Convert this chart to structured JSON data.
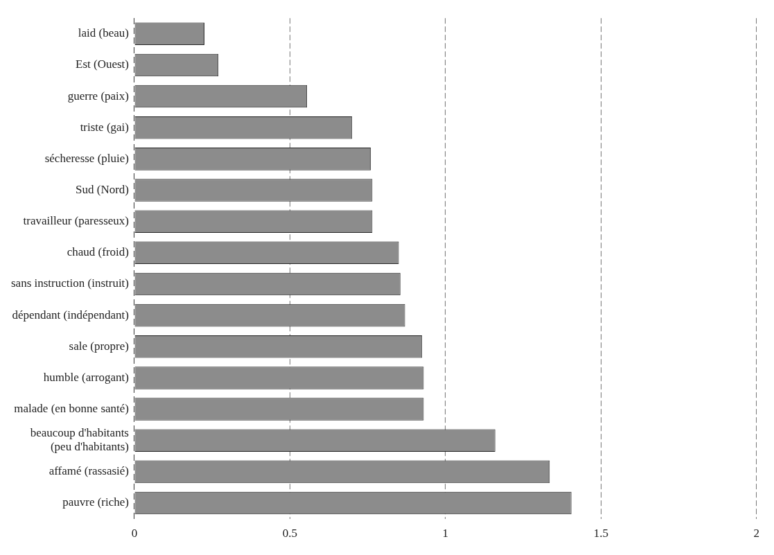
{
  "chart_data": {
    "type": "bar",
    "orientation": "horizontal",
    "categories": [
      "laid (beau)",
      "Est (Ouest)",
      "guerre (paix)",
      "triste (gai)",
      "sécheresse (pluie)",
      "Sud (Nord)",
      "travailleur (paresseux)",
      "chaud (froid)",
      "sans instruction (instruit)",
      "dépendant (indépendant)",
      "sale (propre)",
      "humble (arrogant)",
      "malade (en bonne santé)",
      "beaucoup d'habitants (peu d'habitants)",
      "affamé (rassasié)",
      "pauvre (riche)"
    ],
    "values": [
      0.225,
      0.27,
      0.555,
      0.7,
      0.76,
      0.765,
      0.765,
      0.85,
      0.855,
      0.87,
      0.925,
      0.93,
      0.93,
      1.16,
      1.335,
      1.405
    ],
    "color": "#8c8c8c",
    "xlim": [
      0,
      2
    ],
    "xticks": [
      0,
      0.5,
      1,
      1.5,
      2
    ],
    "grid": "x"
  }
}
